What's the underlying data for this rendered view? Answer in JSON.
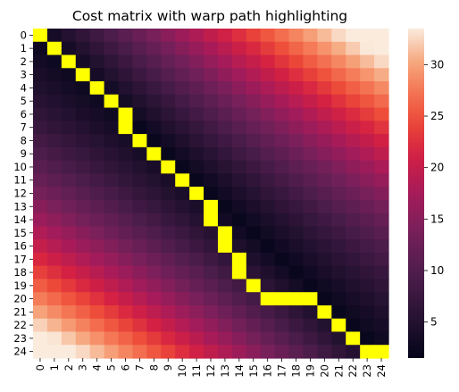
{
  "chart_data": {
    "type": "heatmap",
    "title": "Cost matrix with warp path highlighting",
    "xlabel": "",
    "ylabel": "",
    "x_ticks": [
      "0",
      "1",
      "2",
      "3",
      "4",
      "5",
      "6",
      "7",
      "8",
      "9",
      "10",
      "11",
      "12",
      "13",
      "14",
      "15",
      "16",
      "17",
      "18",
      "19",
      "20",
      "21",
      "22",
      "23",
      "24"
    ],
    "y_ticks": [
      "0",
      "1",
      "2",
      "3",
      "4",
      "5",
      "6",
      "7",
      "8",
      "9",
      "10",
      "11",
      "12",
      "13",
      "14",
      "15",
      "16",
      "17",
      "18",
      "19",
      "20",
      "21",
      "22",
      "23",
      "24"
    ],
    "value_range": [
      1.5,
      33.5
    ],
    "colormap": "rocket",
    "highlight_color": "#ffff00",
    "colorbar": {
      "ticks": [
        5,
        10,
        15,
        20,
        25,
        30
      ]
    },
    "grid": false,
    "warp_path": [
      [
        0,
        0
      ],
      [
        1,
        1
      ],
      [
        2,
        2
      ],
      [
        3,
        3
      ],
      [
        4,
        4
      ],
      [
        5,
        5
      ],
      [
        6,
        6
      ],
      [
        7,
        6
      ],
      [
        8,
        7
      ],
      [
        9,
        8
      ],
      [
        10,
        9
      ],
      [
        11,
        10
      ],
      [
        12,
        11
      ],
      [
        13,
        12
      ],
      [
        14,
        12
      ],
      [
        15,
        13
      ],
      [
        16,
        13
      ],
      [
        17,
        14
      ],
      [
        18,
        14
      ],
      [
        19,
        15
      ],
      [
        20,
        16
      ],
      [
        20,
        17
      ],
      [
        20,
        18
      ],
      [
        20,
        19
      ],
      [
        21,
        20
      ],
      [
        22,
        21
      ],
      [
        23,
        22
      ],
      [
        24,
        23
      ],
      [
        24,
        24
      ]
    ]
  }
}
